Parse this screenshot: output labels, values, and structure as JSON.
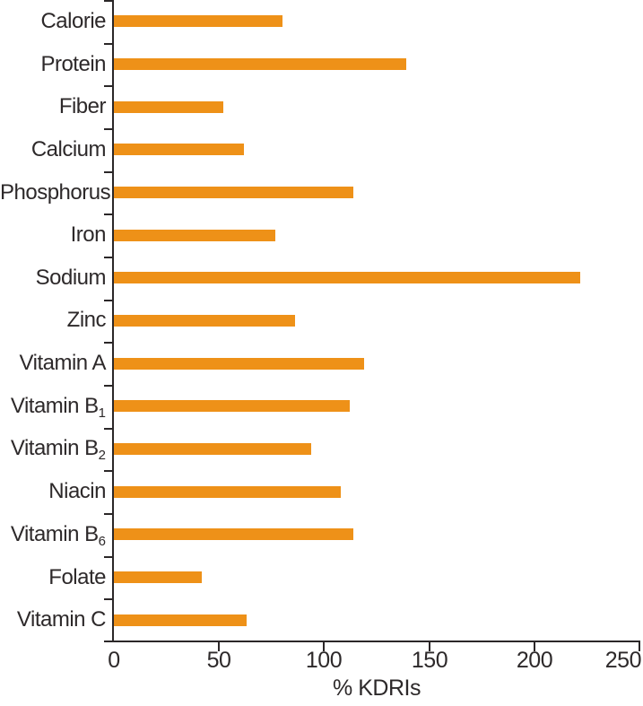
{
  "chart_data": {
    "type": "bar",
    "orientation": "horizontal",
    "title": "",
    "xlabel": "% KDRIs",
    "ylabel": "",
    "xlim": [
      0,
      250
    ],
    "xticks": [
      0,
      50,
      100,
      150,
      200,
      250
    ],
    "grid": false,
    "legend": false,
    "bar_color": "#ee9118",
    "axis_color": "#2b2728",
    "categories": [
      {
        "label": "Calorie",
        "sub": "",
        "value": 80
      },
      {
        "label": "Protein",
        "sub": "",
        "value": 139
      },
      {
        "label": "Fiber",
        "sub": "",
        "value": 52
      },
      {
        "label": "Calcium",
        "sub": "",
        "value": 62
      },
      {
        "label": "Phosphorus",
        "sub": "",
        "value": 114
      },
      {
        "label": "Iron",
        "sub": "",
        "value": 77
      },
      {
        "label": "Sodium",
        "sub": "",
        "value": 222
      },
      {
        "label": "Zinc",
        "sub": "",
        "value": 86
      },
      {
        "label": "Vitamin A",
        "sub": "",
        "value": 119
      },
      {
        "label": "Vitamin B",
        "sub": "1",
        "value": 112
      },
      {
        "label": "Vitamin B",
        "sub": "2",
        "value": 94
      },
      {
        "label": "Niacin",
        "sub": "",
        "value": 108
      },
      {
        "label": "Vitamin B",
        "sub": "6",
        "value": 114
      },
      {
        "label": "Folate",
        "sub": "",
        "value": 42
      },
      {
        "label": "Vitamin C",
        "sub": "",
        "value": 63
      }
    ]
  }
}
